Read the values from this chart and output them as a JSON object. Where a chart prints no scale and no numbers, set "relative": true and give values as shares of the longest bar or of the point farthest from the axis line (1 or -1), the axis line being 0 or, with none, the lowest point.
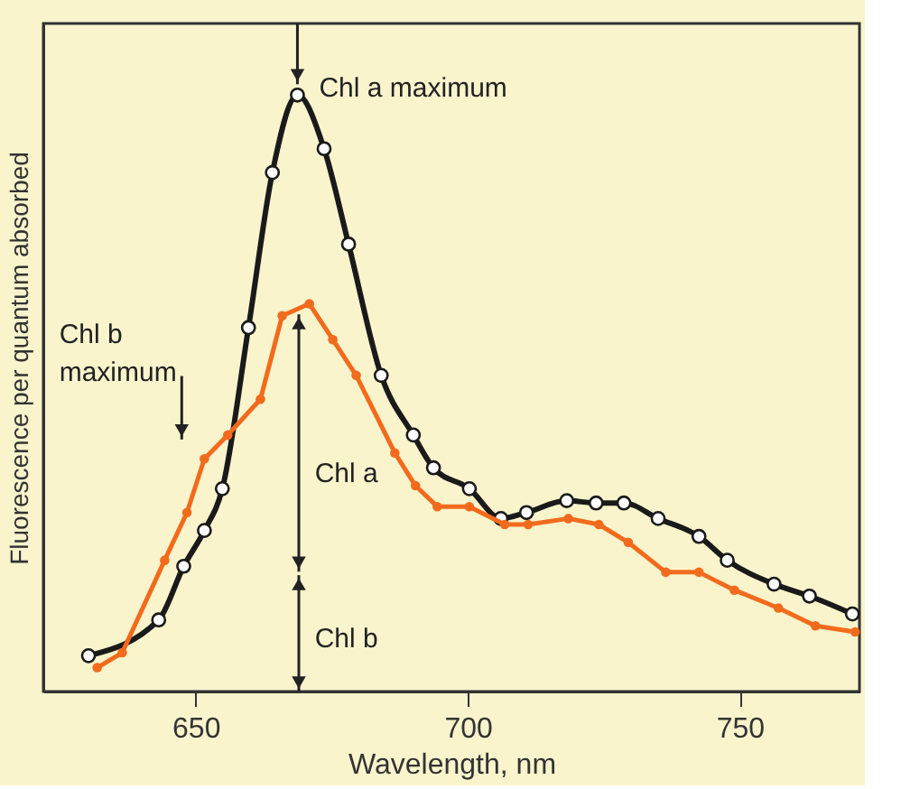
{
  "chart_data": {
    "type": "line",
    "relative": true,
    "xlabel": "Wavelength, nm",
    "ylabel": "Fluorescence per quantum absorbed",
    "xlim": [
      622,
      772
    ],
    "xticks": [
      650,
      700,
      750
    ],
    "marker": "circle",
    "series": [
      {
        "color": "#1a1a1a",
        "x": [
          630.3,
          643.2,
          647.8,
          651.6,
          654.9,
          659.7,
          664.1,
          668.7,
          673.6,
          678.1,
          684.1,
          690.0,
          693.7,
          700.3,
          706.1,
          710.8,
          718.2,
          723.6,
          728.7,
          735.0,
          742.5,
          747.7,
          756.3,
          762.8,
          770.7
        ],
        "values": [
          0.06,
          0.12,
          0.21,
          0.27,
          0.34,
          0.61,
          0.87,
          1.0,
          0.91,
          0.75,
          0.53,
          0.43,
          0.375,
          0.34,
          0.29,
          0.3,
          0.32,
          0.316,
          0.316,
          0.29,
          0.26,
          0.22,
          0.18,
          0.16,
          0.13
        ]
      },
      {
        "color": "#f26b1d",
        "x": [
          631.9,
          636.5,
          644.3,
          648.4,
          651.6,
          655.9,
          661.9,
          665.9,
          670.9,
          675.2,
          679.5,
          686.6,
          690.4,
          694.4,
          700.3,
          706.8,
          711.1,
          718.5,
          724.1,
          729.5,
          736.4,
          742.5,
          749.0,
          757.1,
          763.9,
          771.2
        ],
        "values": [
          0.04,
          0.065,
          0.22,
          0.3,
          0.39,
          0.43,
          0.49,
          0.63,
          0.65,
          0.59,
          0.53,
          0.4,
          0.345,
          0.31,
          0.31,
          0.28,
          0.28,
          0.29,
          0.28,
          0.25,
          0.2,
          0.2,
          0.17,
          0.14,
          0.11,
          0.1
        ]
      }
    ],
    "annotations": [
      {
        "text": "Chl a maximum",
        "x": 668.7,
        "y": 1.0
      },
      "Chl b\nmaximum",
      "Chl a",
      "Chl b"
    ]
  }
}
